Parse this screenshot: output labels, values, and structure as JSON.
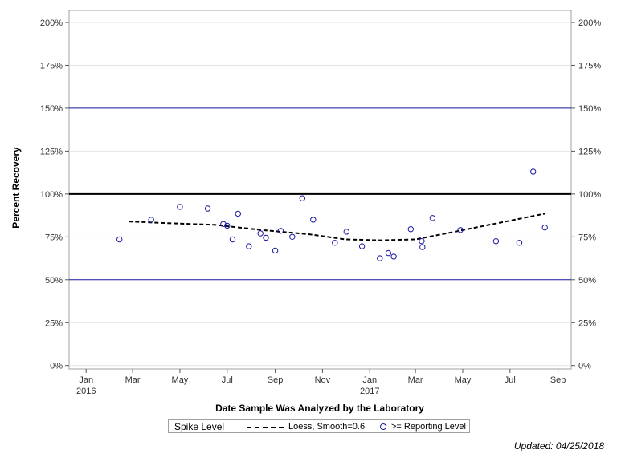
{
  "chart_data": {
    "type": "scatter",
    "xlabel": "Date Sample Was Analyzed by the Laboratory",
    "ylabel": "Percent Recovery",
    "xlim": [
      "2015-12-10",
      "2017-09-18"
    ],
    "ylim": [
      -2,
      207
    ],
    "x_ticks": [
      {
        "date": "2016-01-01",
        "label": "Jan",
        "sublabel": "2016"
      },
      {
        "date": "2016-03-01",
        "label": "Mar",
        "sublabel": ""
      },
      {
        "date": "2016-05-01",
        "label": "May",
        "sublabel": ""
      },
      {
        "date": "2016-07-01",
        "label": "Jul",
        "sublabel": ""
      },
      {
        "date": "2016-09-01",
        "label": "Sep",
        "sublabel": ""
      },
      {
        "date": "2016-11-01",
        "label": "Nov",
        "sublabel": ""
      },
      {
        "date": "2017-01-01",
        "label": "Jan",
        "sublabel": "2017"
      },
      {
        "date": "2017-03-01",
        "label": "Mar",
        "sublabel": ""
      },
      {
        "date": "2017-05-01",
        "label": "May",
        "sublabel": ""
      },
      {
        "date": "2017-07-01",
        "label": "Jul",
        "sublabel": ""
      },
      {
        "date": "2017-09-01",
        "label": "Sep",
        "sublabel": ""
      }
    ],
    "y_ticks": [
      {
        "value": 0,
        "label": "0%"
      },
      {
        "value": 25,
        "label": "25%"
      },
      {
        "value": 50,
        "label": "50%"
      },
      {
        "value": 75,
        "label": "75%"
      },
      {
        "value": 100,
        "label": "100%"
      },
      {
        "value": 125,
        "label": "125%"
      },
      {
        "value": 150,
        "label": "150%"
      },
      {
        "value": 175,
        "label": "175%"
      },
      {
        "value": 200,
        "label": "200%"
      }
    ],
    "reference_lines": [
      {
        "name": "Spike Level",
        "value": 100,
        "color": "#000000"
      },
      {
        "value": 50,
        "color": "#1a1aa6"
      },
      {
        "value": 150,
        "color": "#1a1aa6"
      }
    ],
    "series": [
      {
        "name": ">= Reporting Level",
        "type": "scatter",
        "color": "#1a1aa6",
        "points": [
          {
            "x": "2016-02-13",
            "y": 73.5
          },
          {
            "x": "2016-03-25",
            "y": 85
          },
          {
            "x": "2016-05-01",
            "y": 92.5
          },
          {
            "x": "2016-06-06",
            "y": 91.5
          },
          {
            "x": "2016-06-26",
            "y": 82.5
          },
          {
            "x": "2016-07-01",
            "y": 81.5
          },
          {
            "x": "2016-07-08",
            "y": 73.5
          },
          {
            "x": "2016-07-15",
            "y": 88.5
          },
          {
            "x": "2016-07-29",
            "y": 69.5
          },
          {
            "x": "2016-08-13",
            "y": 77
          },
          {
            "x": "2016-08-20",
            "y": 74.5
          },
          {
            "x": "2016-09-01",
            "y": 67
          },
          {
            "x": "2016-09-08",
            "y": 78.5
          },
          {
            "x": "2016-09-23",
            "y": 75
          },
          {
            "x": "2016-10-06",
            "y": 97.5
          },
          {
            "x": "2016-10-20",
            "y": 85
          },
          {
            "x": "2016-11-17",
            "y": 71.5
          },
          {
            "x": "2016-12-02",
            "y": 78
          },
          {
            "x": "2016-12-22",
            "y": 69.5
          },
          {
            "x": "2017-01-14",
            "y": 62.5
          },
          {
            "x": "2017-01-25",
            "y": 65.5
          },
          {
            "x": "2017-02-01",
            "y": 63.5
          },
          {
            "x": "2017-02-23",
            "y": 79.5
          },
          {
            "x": "2017-03-09",
            "y": 72.5
          },
          {
            "x": "2017-03-10",
            "y": 69
          },
          {
            "x": "2017-03-23",
            "y": 86
          },
          {
            "x": "2017-04-28",
            "y": 79
          },
          {
            "x": "2017-06-13",
            "y": 72.5
          },
          {
            "x": "2017-07-13",
            "y": 71.5
          },
          {
            "x": "2017-07-31",
            "y": 113
          },
          {
            "x": "2017-08-15",
            "y": 80.5
          }
        ]
      },
      {
        "name": "Loess, Smooth=0.6",
        "type": "line",
        "style": "dashed",
        "color": "#000000",
        "points": [
          {
            "x": "2016-02-25",
            "y": 84
          },
          {
            "x": "2016-04-15",
            "y": 83
          },
          {
            "x": "2016-06-15",
            "y": 82
          },
          {
            "x": "2016-08-15",
            "y": 79
          },
          {
            "x": "2016-10-15",
            "y": 76.5
          },
          {
            "x": "2016-12-01",
            "y": 73.5
          },
          {
            "x": "2017-01-15",
            "y": 73
          },
          {
            "x": "2017-03-01",
            "y": 73.5
          },
          {
            "x": "2017-04-15",
            "y": 77.5
          },
          {
            "x": "2017-06-15",
            "y": 83
          },
          {
            "x": "2017-08-15",
            "y": 88.5
          }
        ]
      }
    ],
    "grid": true,
    "legend_position": "bottom"
  },
  "legend": {
    "title": "Spike Level",
    "loess_label": "Loess, Smooth=0.6",
    "points_label": ">= Reporting Level"
  },
  "footnote": "Updated: 04/25/2018"
}
